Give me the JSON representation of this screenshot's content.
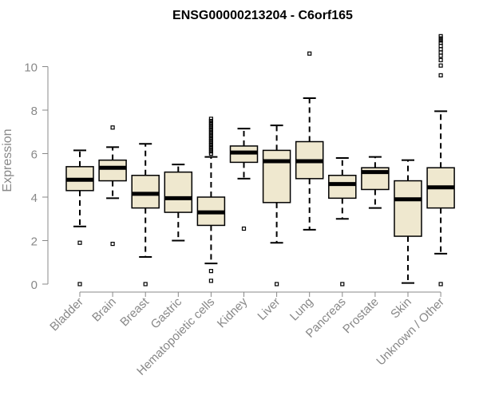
{
  "chart_data": {
    "type": "boxplot",
    "title": "ENSG00000213204 - C6orf165",
    "xlabel": "",
    "ylabel": "Expression",
    "ylim": [
      0,
      11.5
    ],
    "yticks": [
      0,
      2,
      4,
      6,
      8,
      10
    ],
    "grid": false,
    "colors": {
      "box_fill": "#efe8cf",
      "stroke": "#000000",
      "axis": "#888888"
    },
    "categories": [
      "Bladder",
      "Brain",
      "Breast",
      "Gastric",
      "Hematopoietic cells",
      "Kidney",
      "Liver",
      "Lung",
      "Pancreas",
      "Prostate",
      "Skin",
      "Unknown / Other"
    ],
    "boxes": [
      {
        "category": "Bladder",
        "whisker_low": 2.65,
        "q1": 4.3,
        "median": 4.8,
        "q3": 5.4,
        "whisker_high": 6.15,
        "outliers": [
          1.9,
          0
        ]
      },
      {
        "category": "Brain",
        "whisker_low": 3.95,
        "q1": 4.75,
        "median": 5.35,
        "q3": 5.7,
        "whisker_high": 6.3,
        "outliers": [
          7.2,
          1.85
        ]
      },
      {
        "category": "Breast",
        "whisker_low": 1.25,
        "q1": 3.5,
        "median": 4.15,
        "q3": 5.0,
        "whisker_high": 6.45,
        "outliers": [
          0
        ]
      },
      {
        "category": "Gastric",
        "whisker_low": 2.0,
        "q1": 3.3,
        "median": 3.95,
        "q3": 5.15,
        "whisker_high": 5.5,
        "outliers": []
      },
      {
        "category": "Hematopoietic cells",
        "whisker_low": 0.95,
        "q1": 2.7,
        "median": 3.3,
        "q3": 4.0,
        "whisker_high": 5.85,
        "outliers": [
          6.0,
          6.1,
          6.2,
          6.3,
          6.4,
          6.5,
          6.6,
          6.7,
          6.8,
          6.9,
          7.0,
          7.1,
          7.2,
          7.3,
          7.4,
          7.5,
          7.6,
          0.6,
          0.15
        ]
      },
      {
        "category": "Kidney",
        "whisker_low": 4.85,
        "q1": 5.6,
        "median": 6.05,
        "q3": 6.35,
        "whisker_high": 7.15,
        "outliers": [
          2.55
        ]
      },
      {
        "category": "Liver",
        "whisker_low": 1.9,
        "q1": 3.75,
        "median": 5.65,
        "q3": 6.15,
        "whisker_high": 7.3,
        "outliers": [
          0
        ]
      },
      {
        "category": "Lung",
        "whisker_low": 2.5,
        "q1": 4.85,
        "median": 5.65,
        "q3": 6.55,
        "whisker_high": 8.55,
        "outliers": [
          10.6
        ]
      },
      {
        "category": "Pancreas",
        "whisker_low": 3.0,
        "q1": 3.95,
        "median": 4.6,
        "q3": 5.0,
        "whisker_high": 5.8,
        "outliers": [
          0
        ]
      },
      {
        "category": "Prostate",
        "whisker_low": 3.5,
        "q1": 4.35,
        "median": 5.15,
        "q3": 5.35,
        "whisker_high": 5.85,
        "outliers": []
      },
      {
        "category": "Skin",
        "whisker_low": 0.05,
        "q1": 2.2,
        "median": 3.9,
        "q3": 4.75,
        "whisker_high": 5.7,
        "outliers": []
      },
      {
        "category": "Unknown / Other",
        "whisker_low": 1.4,
        "q1": 3.5,
        "median": 4.45,
        "q3": 5.35,
        "whisker_high": 7.95,
        "outliers": [
          9.6,
          10.05,
          10.3,
          10.5,
          10.65,
          10.8,
          10.95,
          11.1,
          11.2,
          11.3,
          11.4,
          0
        ]
      }
    ]
  }
}
